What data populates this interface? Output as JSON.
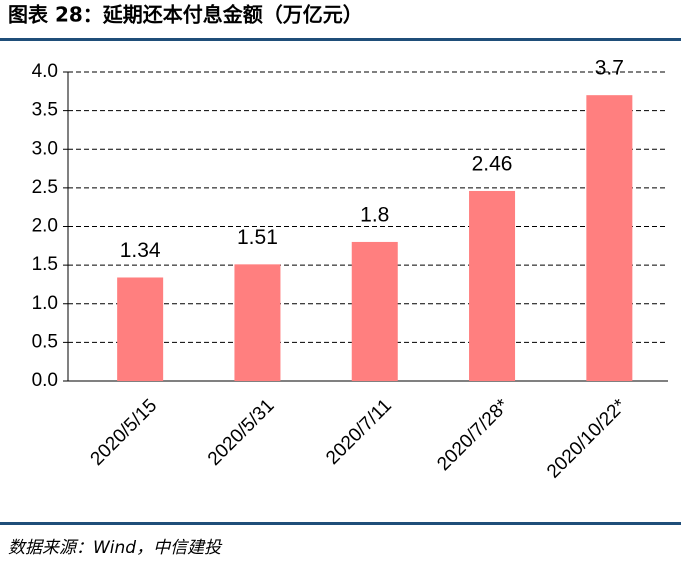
{
  "chart_data": {
    "type": "bar",
    "title": "图表 28：延期还本付息金额（万亿元）",
    "source": "数据来源：Wind，中信建投",
    "categories": [
      "2020/5/15",
      "2020/5/31",
      "2020/7/11",
      "2020/7/28*",
      "2020/10/22*"
    ],
    "values": [
      1.34,
      1.51,
      1.8,
      2.46,
      3.7
    ],
    "color": "#ff7f7f",
    "ylim": [
      0,
      4
    ],
    "yticks": [
      {
        "value": 0,
        "label": "0.0"
      },
      0.5,
      {
        "value": 1,
        "label": "1.0"
      },
      1.5,
      {
        "value": 2,
        "label": "2.0"
      },
      2.5,
      {
        "value": 3,
        "label": "3.0"
      },
      3.5,
      {
        "value": 4,
        "label": "4.0"
      }
    ],
    "grid": true
  }
}
